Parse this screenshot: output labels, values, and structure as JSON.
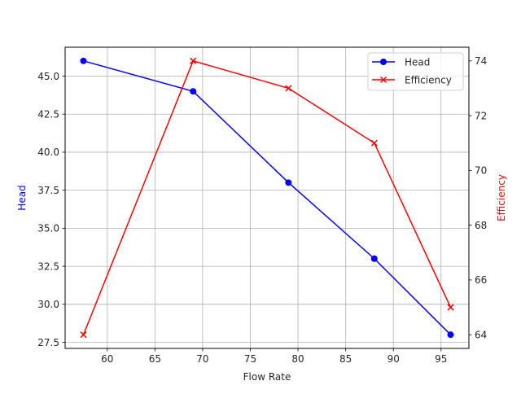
{
  "chart_data": {
    "type": "line",
    "title": "",
    "xlabel": "Flow Rate",
    "ylabel": "Head",
    "ylabel_right": "Efficiency",
    "x": [
      57.5,
      69,
      79,
      88,
      96
    ],
    "series": [
      {
        "name": "Head",
        "axis": "left",
        "color": "#0000ff",
        "marker": "circle",
        "values": [
          46.0,
          44.0,
          38.0,
          33.0,
          28.0
        ]
      },
      {
        "name": "Efficiency",
        "axis": "right",
        "color": "#ff0000",
        "marker": "x",
        "values": [
          64,
          74,
          73,
          71,
          65
        ]
      }
    ],
    "xlim": [
      55.58,
      97.92
    ],
    "ylim": [
      27.1,
      46.9
    ],
    "ylim_right": [
      63.5,
      74.5
    ],
    "xticks": [
      60,
      65,
      70,
      75,
      80,
      85,
      90,
      95
    ],
    "xtick_labels": [
      "60",
      "65",
      "70",
      "75",
      "80",
      "85",
      "90",
      "95"
    ],
    "yticks": [
      27.5,
      30.0,
      32.5,
      35.0,
      37.5,
      40.0,
      42.5,
      45.0
    ],
    "ytick_labels": [
      "27.5",
      "30.0",
      "32.5",
      "35.0",
      "37.5",
      "40.0",
      "42.5",
      "45.0"
    ],
    "yticks_right": [
      64,
      66,
      68,
      70,
      72,
      74
    ],
    "ytick_labels_right": [
      "64",
      "66",
      "68",
      "70",
      "72",
      "74"
    ],
    "grid": true,
    "legend_position": "upper right",
    "legend": [
      "Head",
      "Efficiency"
    ]
  },
  "colors": {
    "head": "#0000ff",
    "efficiency": "#ff0000",
    "grid": "#b0b0b0",
    "axis": "#000000",
    "text": "#262626"
  }
}
